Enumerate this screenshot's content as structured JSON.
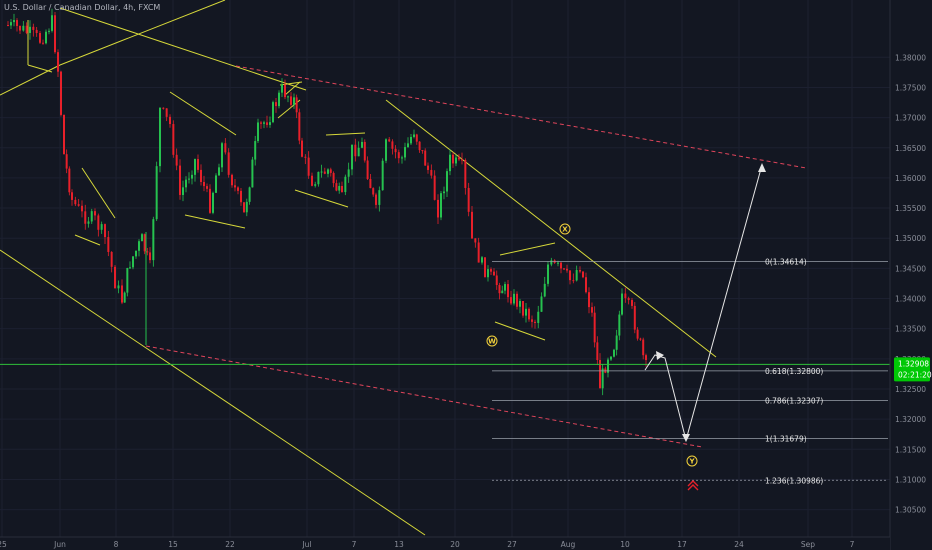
{
  "header": {
    "symbol_title": "U.S. Dollar / Canadian Dollar, 4h, FXCM"
  },
  "price_badge": {
    "price": "1.32908",
    "countdown": "02:21:20",
    "color": "#00c805"
  },
  "chart_data": {
    "type": "candlestick",
    "y_axis": {
      "ylim": [
        1.2983,
        1.3895
      ],
      "ticks": [
        "1.38000",
        "1.37500",
        "1.37000",
        "1.36500",
        "1.36000",
        "1.35500",
        "1.35000",
        "1.34500",
        "1.34000",
        "1.33500",
        "1.33000",
        "1.32500",
        "1.32000",
        "1.31500",
        "1.31000",
        "1.30500"
      ]
    },
    "x_axis": {
      "ticks": [
        "25",
        "Jun",
        "8",
        "15",
        "22",
        "Jul",
        "7",
        "13",
        "20",
        "27",
        "Aug",
        "10",
        "17",
        "24",
        "Sep",
        "7"
      ]
    },
    "fibonacci_levels": [
      {
        "label": "0(1.34614)",
        "value": 1.34614
      },
      {
        "label": "0.618(1.32800)",
        "value": 1.328
      },
      {
        "label": "0.786(1.32307)",
        "value": 1.32307
      },
      {
        "label": "1(1.31679)",
        "value": 1.31679
      },
      {
        "label": "1.236(1.30986)",
        "value": 1.30986
      }
    ],
    "wave_labels": [
      "X",
      "W",
      "Y"
    ],
    "current_price": 1.32908,
    "colors": {
      "background": "#131722",
      "bull": "#26c24f",
      "bear": "#e8202a",
      "trendline": "#d6d83a",
      "channel_dash": "#e0455b",
      "fib_line": "#9aa0aa",
      "projection": "#e6e6e6",
      "price_line": "#2fbf3a",
      "wave_label": "#f3d23b"
    }
  }
}
